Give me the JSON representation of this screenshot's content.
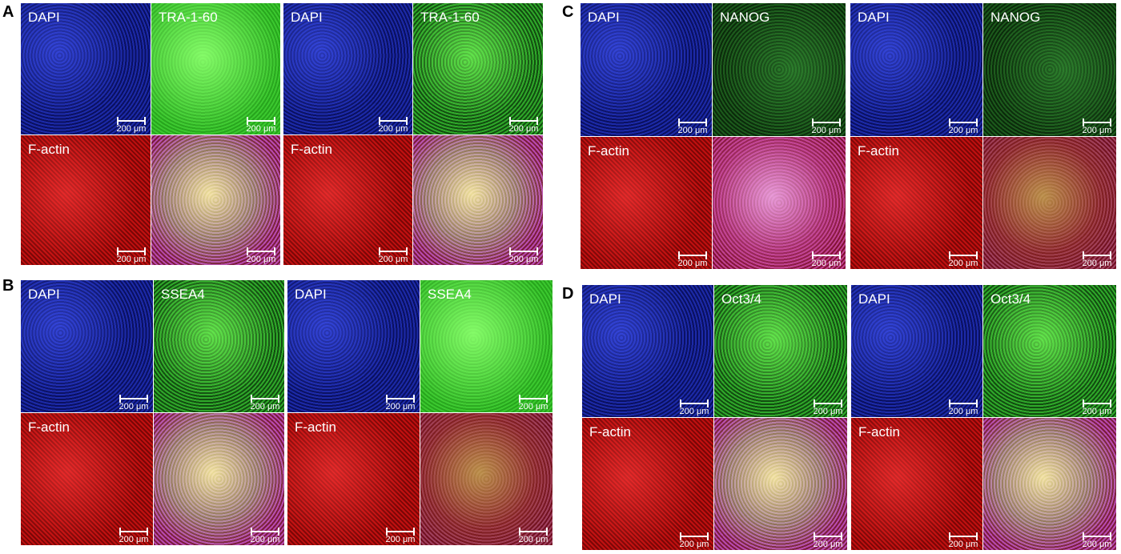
{
  "panels": [
    {
      "letter": "A",
      "marker": "TRA-1-60"
    },
    {
      "letter": "B",
      "marker": "SSEA4"
    },
    {
      "letter": "C",
      "marker": "NANOG"
    },
    {
      "letter": "D",
      "marker": "Oct3/4"
    }
  ],
  "labels": {
    "dapi": "DAPI",
    "factin": "F-actin"
  },
  "scale_bar_text": "200 μm",
  "colors": {
    "dapi": "#1c2aa8",
    "marker": "#2fa82a",
    "factin": "#c01010"
  }
}
